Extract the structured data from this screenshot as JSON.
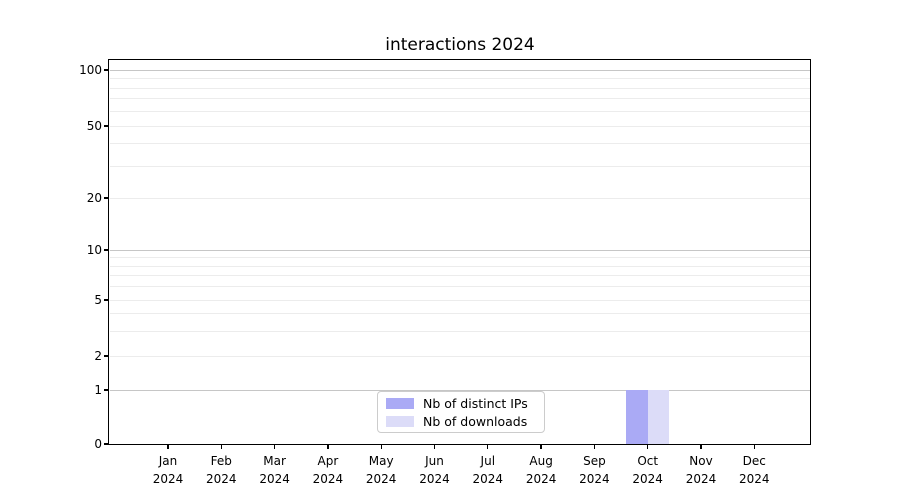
{
  "chart_data": {
    "type": "bar",
    "title": "interactions 2024",
    "xlabel": "",
    "ylabel": "",
    "categories": [
      "Jan",
      "Feb",
      "Mar",
      "Apr",
      "May",
      "Jun",
      "Jul",
      "Aug",
      "Sep",
      "Oct",
      "Nov",
      "Dec"
    ],
    "category_sub_label": "2024",
    "series": [
      {
        "name": "Nb of distinct IPs",
        "color": "#aaaaf5",
        "values": [
          0,
          0,
          0,
          0,
          0,
          0,
          0,
          0,
          0,
          1,
          0,
          0
        ]
      },
      {
        "name": "Nb of downloads",
        "color": "#dcdcf8",
        "values": [
          0,
          0,
          0,
          0,
          0,
          0,
          0,
          0,
          0,
          1,
          0,
          0
        ]
      }
    ],
    "y_axis": {
      "scale": "symlog",
      "labeled_ticks": [
        0,
        1,
        2,
        5,
        10,
        20,
        50,
        100
      ],
      "ylim": [
        0,
        112
      ],
      "grid": "horizontal major and minor"
    },
    "legend": {
      "position": "lower center",
      "entries": [
        "Nb of distinct IPs",
        "Nb of downloads"
      ]
    },
    "colors": {
      "major_grid": "#c6c6c6",
      "minor_grid": "#ececec",
      "axis": "#000000",
      "background": "#ffffff"
    }
  }
}
